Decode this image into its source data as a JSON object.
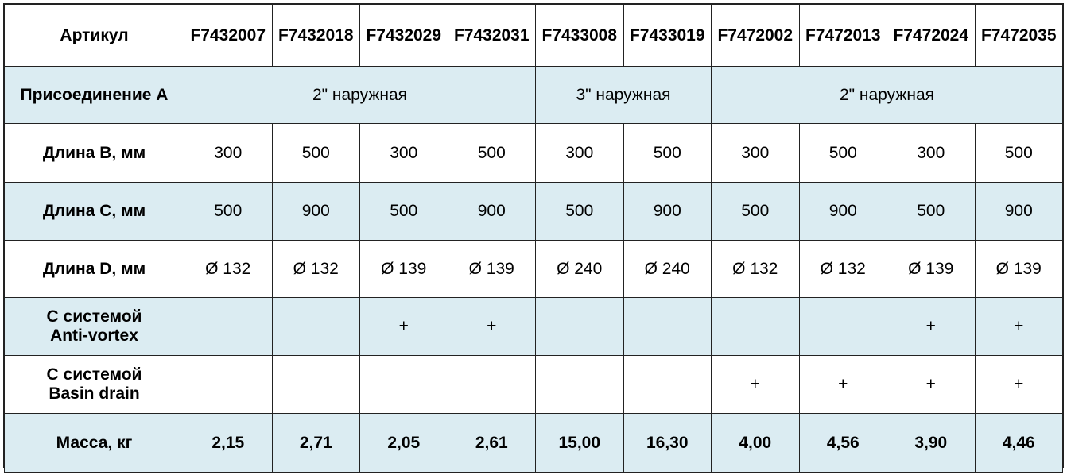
{
  "colors": {
    "alt_row": "#dbecf2",
    "border": "#222222"
  },
  "rows": {
    "article": {
      "label": "Артикул",
      "values": [
        "F7432007",
        "F7432018",
        "F7432029",
        "F7432031",
        "F7433008",
        "F7433019",
        "F7472002",
        "F7472013",
        "F7472024",
        "F7472035"
      ]
    },
    "connection": {
      "label": "Присоединение А",
      "groups": [
        "2\" наружная",
        "3\" наружная",
        "2\" наружная"
      ]
    },
    "length_b": {
      "label": "Длина В, мм",
      "values": [
        "300",
        "500",
        "300",
        "500",
        "300",
        "500",
        "300",
        "500",
        "300",
        "500"
      ]
    },
    "length_c": {
      "label": "Длина С, мм",
      "values": [
        "500",
        "900",
        "500",
        "900",
        "500",
        "900",
        "500",
        "900",
        "500",
        "900"
      ]
    },
    "length_d": {
      "label": "Длина D, мм",
      "values": [
        "Ø 132",
        "Ø 132",
        "Ø 139",
        "Ø 139",
        "Ø 240",
        "Ø 240",
        "Ø 132",
        "Ø 132",
        "Ø 139",
        "Ø 139"
      ]
    },
    "anti_vortex": {
      "label_1": "С системой",
      "label_2": "Anti-vortex",
      "values": [
        "",
        "",
        "+",
        "+",
        "",
        "",
        "",
        "",
        "+",
        "+"
      ]
    },
    "basin_drain": {
      "label_1": "С системой",
      "label_2": "Basin drain",
      "values": [
        "",
        "",
        "",
        "",
        "",
        "",
        "+",
        "+",
        "+",
        "+"
      ]
    },
    "mass": {
      "label": "Масса, кг",
      "values": [
        "2,15",
        "2,71",
        "2,05",
        "2,61",
        "15,00",
        "16,30",
        "4,00",
        "4,56",
        "3,90",
        "4,46"
      ]
    }
  }
}
